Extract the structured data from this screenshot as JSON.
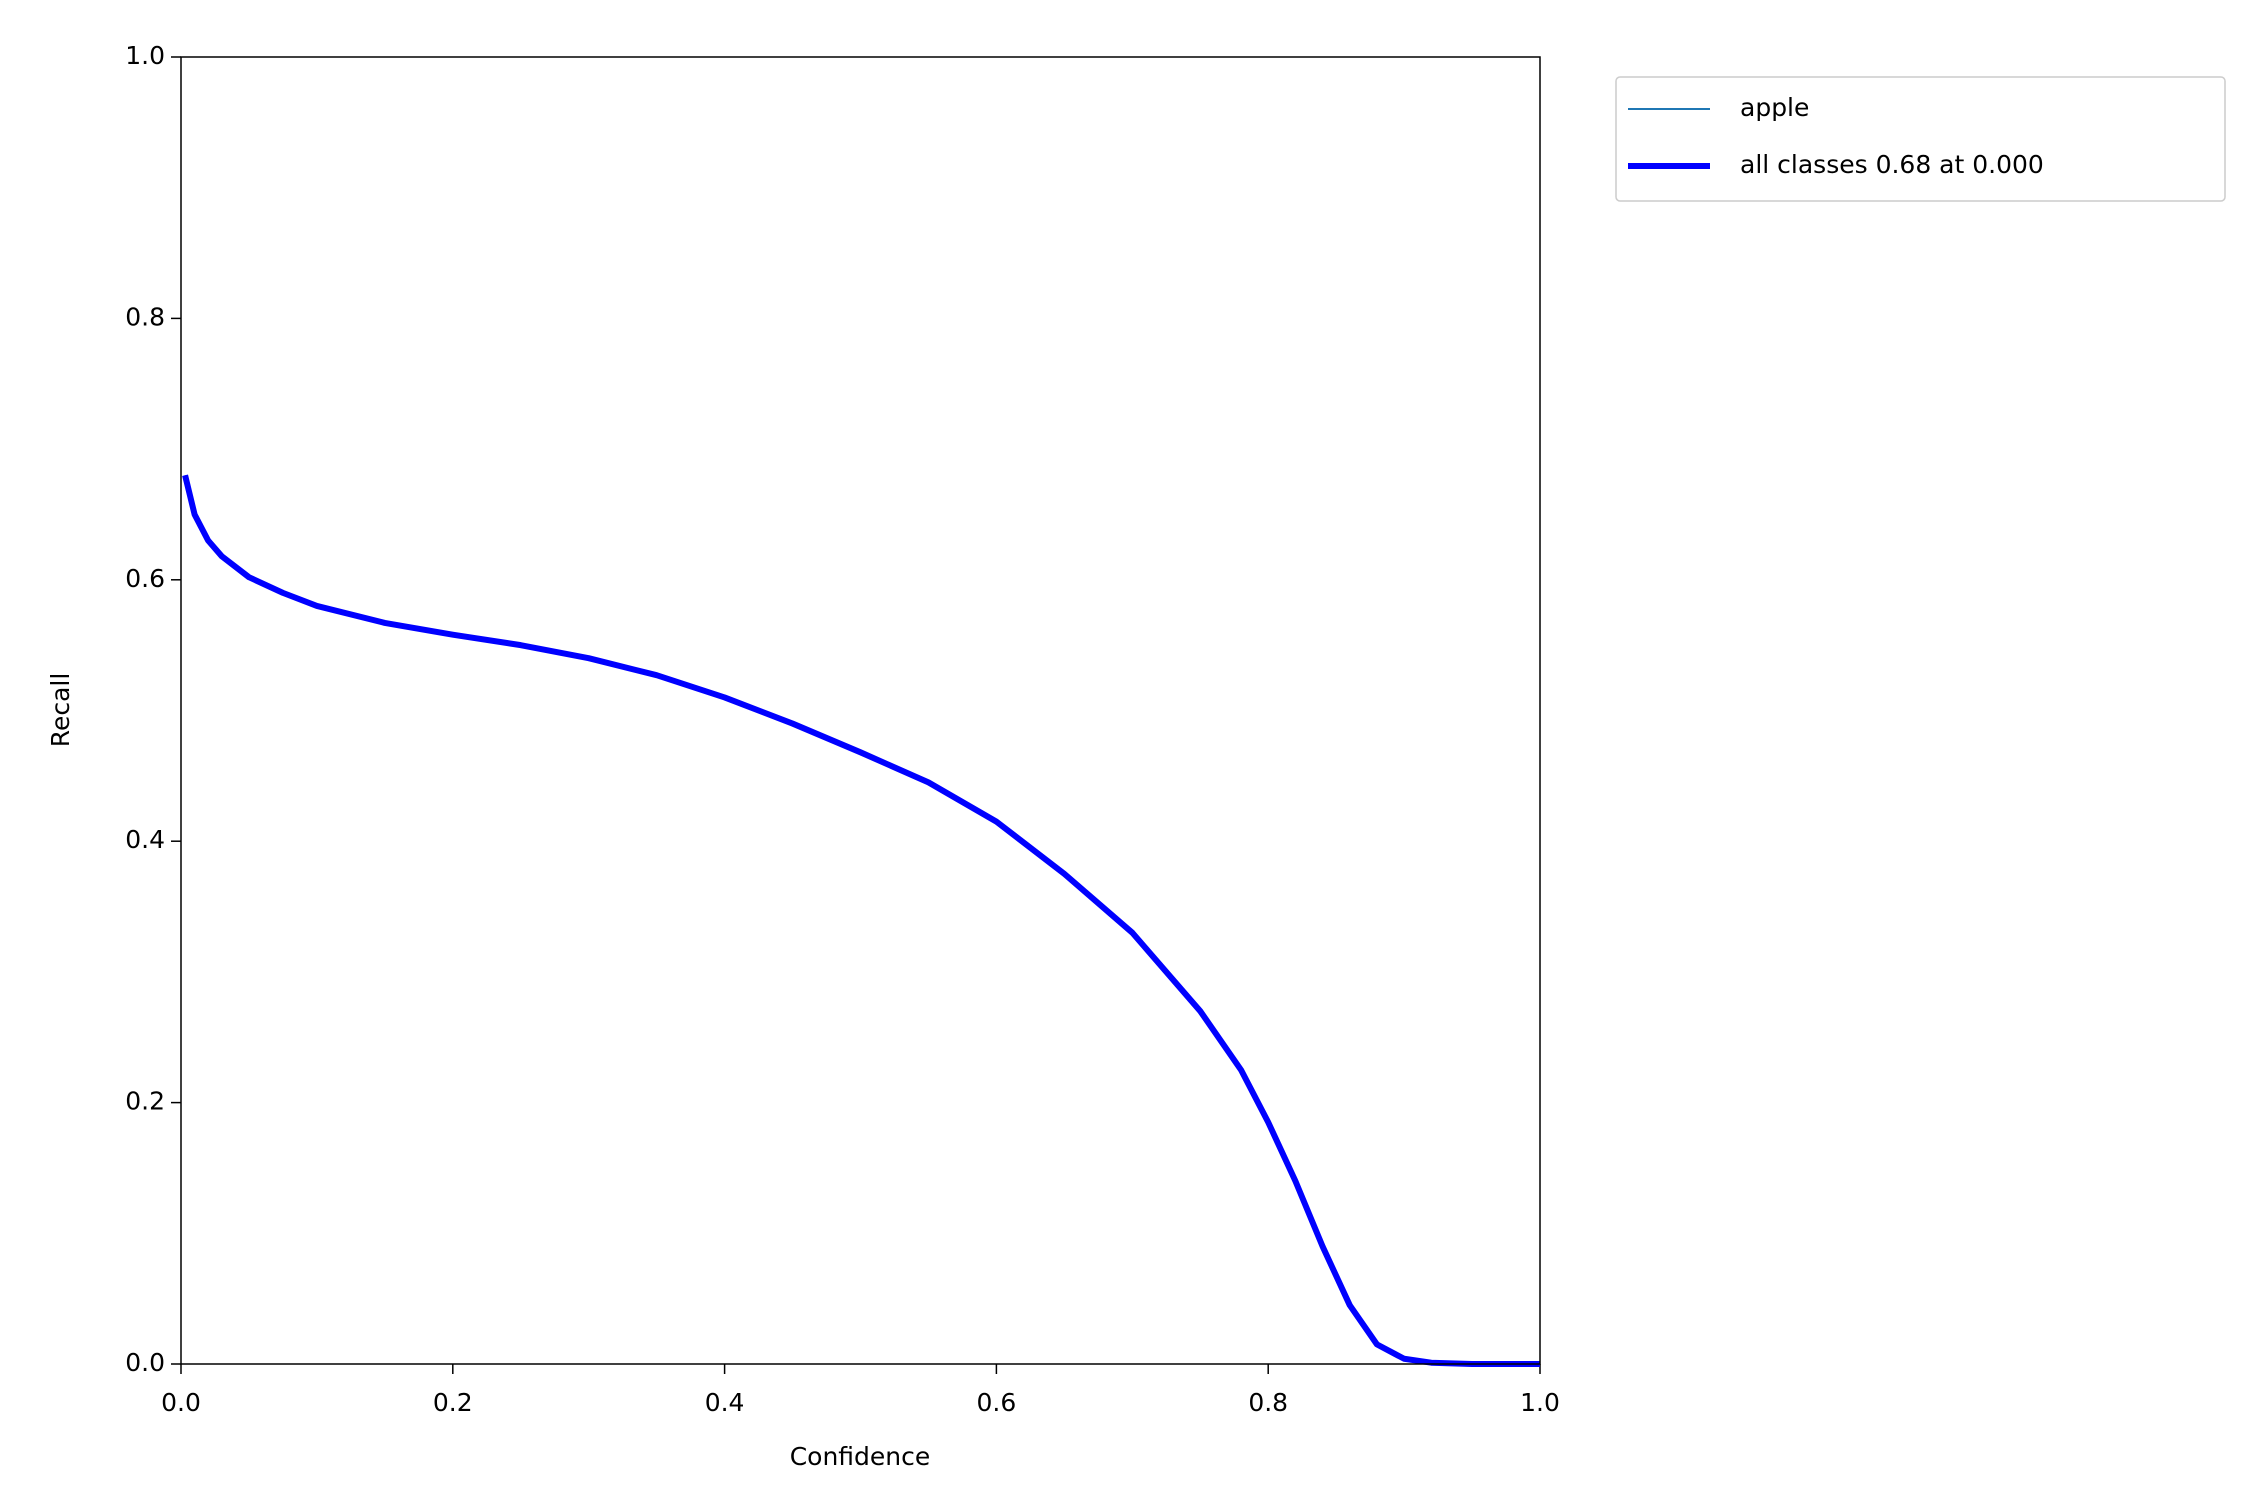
{
  "chart_data": {
    "type": "line",
    "x_label": "Confidence",
    "y_label": "Recall",
    "x": [
      0.003,
      0.01,
      0.02,
      0.03,
      0.05,
      0.075,
      0.1,
      0.15,
      0.2,
      0.25,
      0.3,
      0.35,
      0.4,
      0.45,
      0.5,
      0.55,
      0.6,
      0.65,
      0.7,
      0.75,
      0.78,
      0.8,
      0.82,
      0.84,
      0.86,
      0.88,
      0.9,
      0.92,
      0.95,
      1.0
    ],
    "series": [
      {
        "name": "apple",
        "color": "#1f77b4",
        "width": 1,
        "values": [
          0.68,
          0.65,
          0.63,
          0.618,
          0.602,
          0.59,
          0.58,
          0.567,
          0.558,
          0.55,
          0.54,
          0.527,
          0.51,
          0.49,
          0.468,
          0.445,
          0.415,
          0.375,
          0.33,
          0.27,
          0.225,
          0.185,
          0.14,
          0.09,
          0.045,
          0.015,
          0.004,
          0.001,
          0.0,
          0.0
        ]
      },
      {
        "name": "all classes 0.68 at 0.000",
        "color": "#0000ff",
        "width": 3,
        "values": [
          0.68,
          0.65,
          0.63,
          0.618,
          0.602,
          0.59,
          0.58,
          0.567,
          0.558,
          0.55,
          0.54,
          0.527,
          0.51,
          0.49,
          0.468,
          0.445,
          0.415,
          0.375,
          0.33,
          0.27,
          0.225,
          0.185,
          0.14,
          0.09,
          0.045,
          0.015,
          0.004,
          0.001,
          0.0,
          0.0
        ]
      }
    ],
    "xlim": [
      0,
      1
    ],
    "ylim": [
      0,
      1
    ],
    "xticks": [
      {
        "value": 0,
        "label": "0.0"
      },
      0.2,
      0.4,
      0.6,
      0.8,
      {
        "value": 1,
        "label": "1.0"
      }
    ],
    "yticks": [
      {
        "value": 0,
        "label": "0.0"
      },
      0.2,
      0.4,
      0.6,
      0.8,
      {
        "value": 1,
        "label": "1.0"
      }
    ],
    "grid": false,
    "legend": "outside-upper-right"
  }
}
